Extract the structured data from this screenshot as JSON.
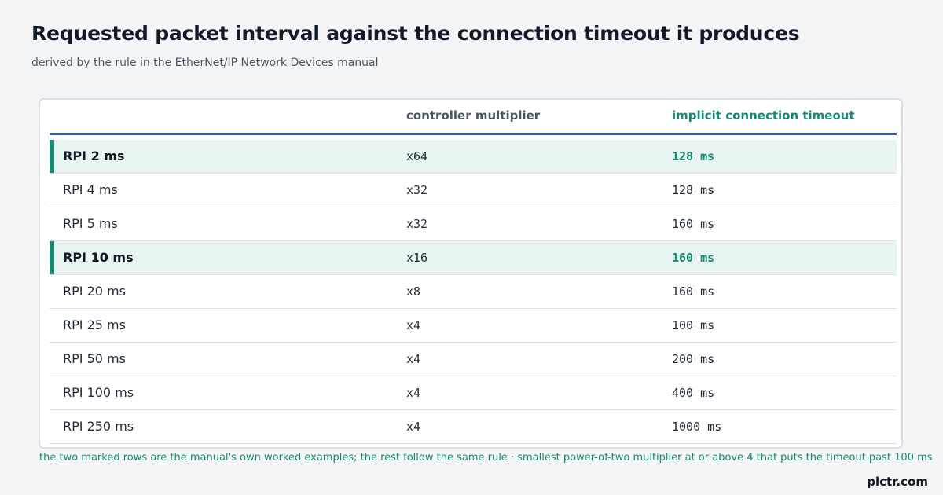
{
  "title": "Requested packet interval against the connection timeout it produces",
  "subtitle": "derived by the rule in the EtherNet/IP Network Devices manual",
  "columns": {
    "rpi": "",
    "multiplier": "controller multiplier",
    "timeout": "implicit connection timeout"
  },
  "footnote": "the two marked rows are the manual's own worked examples; the rest follow the same rule · smallest power-of-two multiplier at or above 4 that puts the timeout past 100 ms",
  "brand": "plctr.com",
  "colors": {
    "accent": "#178a74",
    "rule": "#2f5fa7",
    "marked_row_bg": "#e8f4f1"
  },
  "chart_data": {
    "type": "table",
    "title": "Requested packet interval against the connection timeout it produces",
    "subtitle": "derived by the rule in the EtherNet/IP Network Devices manual",
    "columns": [
      "",
      "controller multiplier",
      "implicit connection timeout"
    ],
    "rows": [
      {
        "rpi": "RPI 2 ms",
        "multiplier": "x64",
        "timeout": "128 ms",
        "marked": true
      },
      {
        "rpi": "RPI 4 ms",
        "multiplier": "x32",
        "timeout": "128 ms",
        "marked": false
      },
      {
        "rpi": "RPI 5 ms",
        "multiplier": "x32",
        "timeout": "160 ms",
        "marked": false
      },
      {
        "rpi": "RPI 10 ms",
        "multiplier": "x16",
        "timeout": "160 ms",
        "marked": true
      },
      {
        "rpi": "RPI 20 ms",
        "multiplier": "x8",
        "timeout": "160 ms",
        "marked": false
      },
      {
        "rpi": "RPI 25 ms",
        "multiplier": "x4",
        "timeout": "100 ms",
        "marked": false
      },
      {
        "rpi": "RPI 50 ms",
        "multiplier": "x4",
        "timeout": "200 ms",
        "marked": false
      },
      {
        "rpi": "RPI 100 ms",
        "multiplier": "x4",
        "timeout": "400 ms",
        "marked": false
      },
      {
        "rpi": "RPI 250 ms",
        "multiplier": "x4",
        "timeout": "1000 ms",
        "marked": false
      }
    ]
  }
}
